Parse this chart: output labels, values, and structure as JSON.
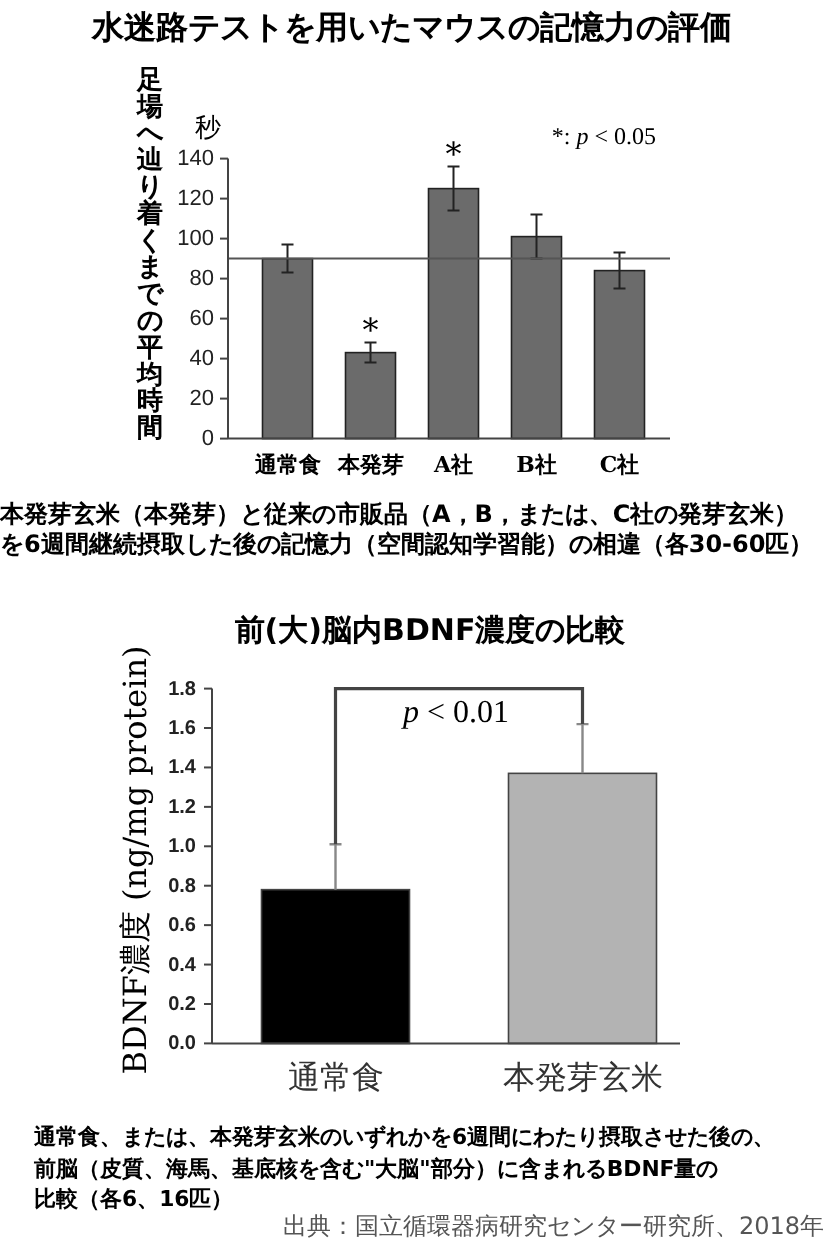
{
  "chart_data": [
    {
      "type": "bar",
      "title": "水迷路テストを用いたマウスの記憶力の評価",
      "ylabel": "足場へ辿り着くまでの平均時間",
      "categories": [
        "通常食",
        "本発芽",
        "A社",
        "B社",
        "C社"
      ],
      "values": [
        90,
        43,
        125,
        101,
        84
      ],
      "errors": [
        7,
        5,
        11,
        11,
        9
      ],
      "color": "#6b6b6b",
      "ylim": [
        0,
        140
      ],
      "yticks": [
        0,
        20,
        40,
        60,
        80,
        100,
        120,
        140
      ],
      "ref_lines": [
        {
          "axis": "y",
          "value": 90,
          "color": "#555555"
        }
      ],
      "annotations": [
        "秒",
        "*: p < 0.05",
        "本発芽玄米（本発芽）と従来の市販品（A，B，または、C社の発芽玄米）を6週間継続摂取した後の記憶力（空間認知学習能）の相違（各30-60匹）",
        {
          "text": "*",
          "x": "本発芽",
          "y": 48
        },
        {
          "text": "*",
          "x": "A社",
          "y": 136
        }
      ]
    },
    {
      "type": "bar",
      "title": "前(大)脳内BDNF濃度の比較",
      "ylabel": "BDNF濃度 (ng/mg protein)",
      "categories": [
        "通常食",
        "本発芽玄米"
      ],
      "values": [
        0.78,
        1.37
      ],
      "errors": [
        [
          0.78,
          1.01
        ],
        [
          1.37,
          1.62
        ]
      ],
      "colors": [
        "#000000",
        "#b3b3b3"
      ],
      "ylim": [
        0,
        1.8
      ],
      "yticks": [
        {
          "value": 0,
          "label": "0.0"
        },
        0.2,
        0.4,
        0.6,
        0.8,
        {
          "value": 1,
          "label": "1.0"
        },
        1.2,
        1.4,
        1.6,
        1.8
      ],
      "annotations": [
        "p < 0.01",
        "通常食、または、本発芽玄米のいずれかを6週間にわたり摂取させた後の、前脳（皮質、海馬、基底核を含む\"大脳\"部分）に含まれるBDNF量の比較（各6、16匹）",
        "出典：国立循環器病研究センター研究所、2018年"
      ]
    }
  ]
}
